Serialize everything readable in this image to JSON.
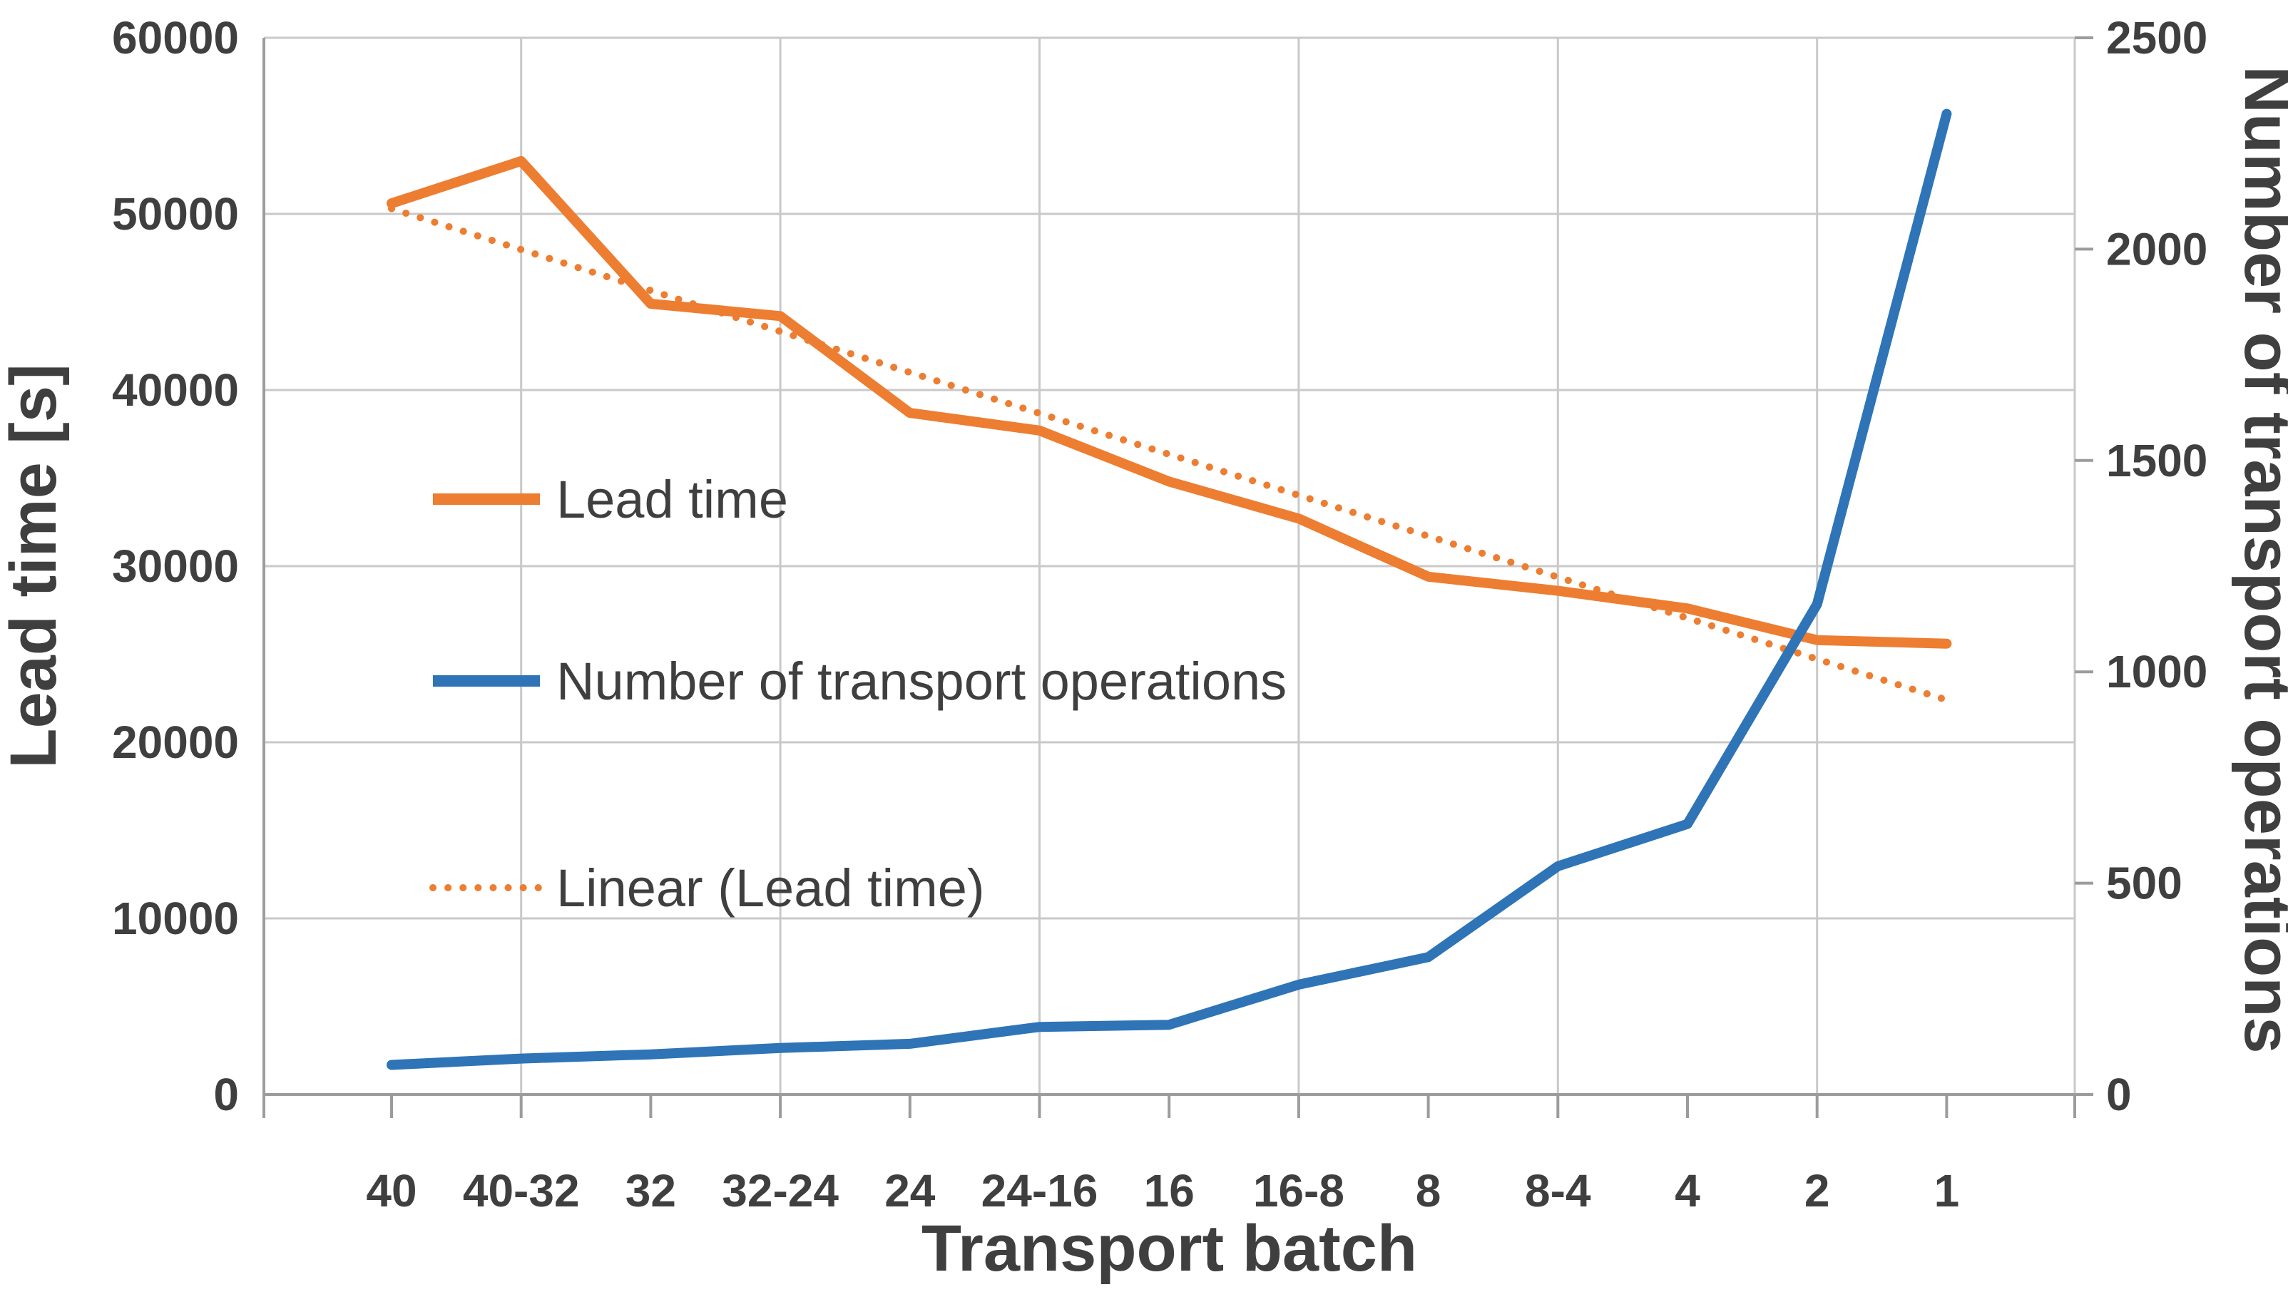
{
  "chart_data": {
    "type": "line",
    "title": "",
    "xlabel": "Transport batch",
    "ylabel_left": "Lead time [s]",
    "ylabel_right": "Number of transport operations",
    "categories": [
      "40",
      "40-32",
      "32",
      "32-24",
      "24",
      "24-16",
      "16",
      "16-8",
      "8",
      "8-4",
      "4",
      "2",
      "1"
    ],
    "y_left": {
      "min": 0,
      "max": 60000,
      "step": 10000,
      "ticks": [
        "0",
        "10000",
        "20000",
        "30000",
        "40000",
        "50000",
        "60000"
      ]
    },
    "y_right": {
      "min": 0,
      "max": 2500,
      "step": 500,
      "ticks": [
        "0",
        "500",
        "1000",
        "1500",
        "2000",
        "2500"
      ]
    },
    "series": [
      {
        "name": "Lead time",
        "axis": "left",
        "style": "solid",
        "color": "#ED7D31",
        "values": [
          50600,
          53000,
          44900,
          44200,
          38700,
          37700,
          34800,
          32700,
          29400,
          28600,
          27600,
          25800,
          25600
        ]
      },
      {
        "name": "Number of transport operations",
        "axis": "right",
        "style": "solid",
        "color": "#2E74B6",
        "values": [
          70,
          85,
          95,
          110,
          120,
          160,
          165,
          260,
          325,
          540,
          640,
          1160,
          2320
        ]
      },
      {
        "name": "Linear (Lead time)",
        "axis": "left",
        "style": "dotted",
        "color": "#ED7D31",
        "values": [
          50300,
          47975,
          45650,
          43325,
          41000,
          38675,
          36350,
          34025,
          31700,
          29375,
          27050,
          24725,
          22400
        ]
      }
    ],
    "legend_position": "inside-left",
    "grid": true,
    "colors": {
      "grid": "#C9C9C9",
      "axis": "#9C9C9C",
      "text": "#3F3F3F"
    }
  }
}
